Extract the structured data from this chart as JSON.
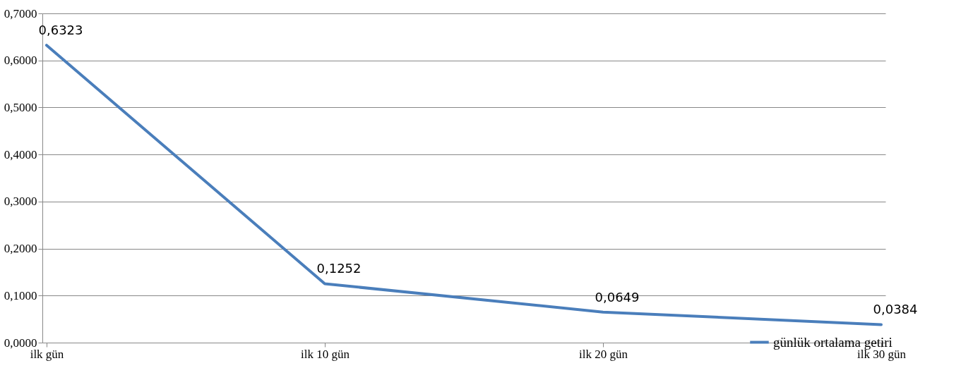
{
  "chart_data": {
    "type": "line",
    "categories": [
      "ilk gün",
      "ilk 10 gün",
      "ilk 20 gün",
      "ilk 30 gün"
    ],
    "series": [
      {
        "name": "günlük ortalama getiri",
        "color": "#4a7ebb",
        "values": [
          0.6323,
          0.1252,
          0.0649,
          0.0384
        ],
        "value_labels": [
          "0,6323",
          "0,1252",
          "0,0649",
          "0,0384"
        ]
      }
    ],
    "ylim": [
      0,
      0.7
    ],
    "yticks": [
      {
        "value": 0,
        "label": "0,0000"
      },
      {
        "value": 0.1,
        "label": "0,1000"
      },
      {
        "value": 0.2,
        "label": "0,2000"
      },
      {
        "value": 0.3,
        "label": "0,3000"
      },
      {
        "value": 0.4,
        "label": "0,4000"
      },
      {
        "value": 0.5,
        "label": "0,5000"
      },
      {
        "value": 0.6,
        "label": "0,6000"
      },
      {
        "value": 0.7,
        "label": "0,7000"
      }
    ],
    "grid": "y",
    "legend": "bottom right",
    "marker": "none",
    "line_style": "solid"
  }
}
